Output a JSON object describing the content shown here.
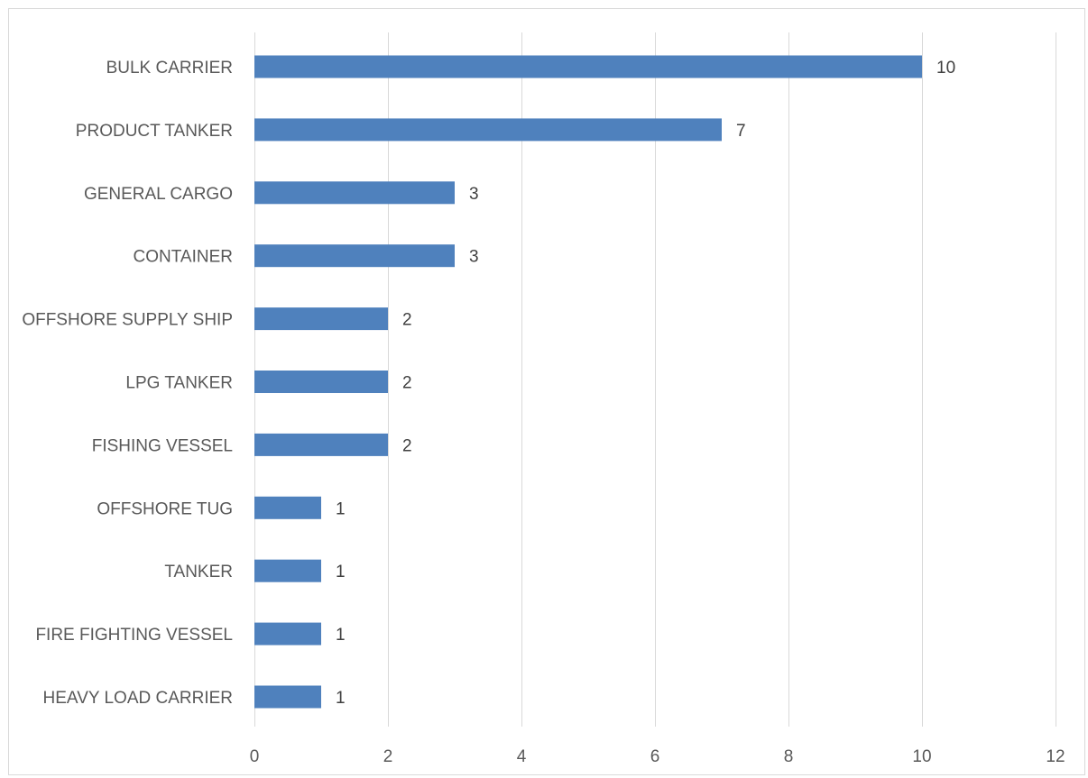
{
  "chart_data": {
    "type": "bar",
    "orientation": "horizontal",
    "title": "",
    "xlabel": "",
    "ylabel": "",
    "categories": [
      "BULK CARRIER",
      "PRODUCT TANKER",
      "GENERAL CARGO",
      "CONTAINER",
      "OFFSHORE SUPPLY SHIP",
      "LPG TANKER",
      "FISHING VESSEL",
      "OFFSHORE TUG",
      "TANKER",
      "FIRE FIGHTING VESSEL",
      "HEAVY LOAD CARRIER"
    ],
    "values": [
      10,
      7,
      3,
      3,
      2,
      2,
      2,
      1,
      1,
      1,
      1
    ],
    "xlim": [
      0,
      12
    ],
    "xticks": [
      0,
      2,
      4,
      6,
      8,
      10,
      12
    ],
    "grid": "vertical",
    "data_labels": true,
    "legend": "none",
    "bar_color": "#4f81bd"
  }
}
